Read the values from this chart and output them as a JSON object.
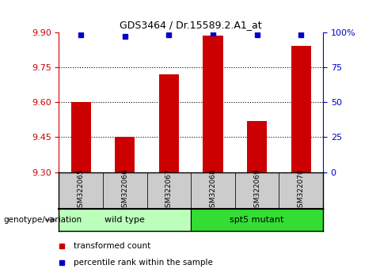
{
  "title": "GDS3464 / Dr.15589.2.A1_at",
  "categories": [
    "GSM322065",
    "GSM322066",
    "GSM322067",
    "GSM322068",
    "GSM322069",
    "GSM322070"
  ],
  "bar_values": [
    9.6,
    9.45,
    9.72,
    9.885,
    9.52,
    9.84
  ],
  "bar_bottom": 9.3,
  "bar_color": "#cc0000",
  "percentile_values": [
    98,
    97,
    98,
    99,
    98,
    98
  ],
  "percentile_color": "#0000cc",
  "ylim_left": [
    9.3,
    9.9
  ],
  "ylim_right": [
    0,
    100
  ],
  "yticks_left": [
    9.3,
    9.45,
    9.6,
    9.75,
    9.9
  ],
  "yticks_right": [
    0,
    25,
    50,
    75,
    100
  ],
  "ytick_labels_right": [
    "0",
    "25",
    "50",
    "75",
    "100%"
  ],
  "grid_values": [
    9.45,
    9.6,
    9.75
  ],
  "groups": [
    {
      "label": "wild type",
      "start": 0,
      "end": 3,
      "color": "#bbffbb"
    },
    {
      "label": "spt5 mutant",
      "start": 3,
      "end": 6,
      "color": "#33dd33"
    }
  ],
  "group_label": "genotype/variation",
  "legend_items": [
    {
      "color": "#cc0000",
      "label": "transformed count"
    },
    {
      "color": "#0000cc",
      "label": "percentile rank within the sample"
    }
  ],
  "left_axis_color": "#cc0000",
  "right_axis_color": "#0000cc",
  "xlim": [
    -0.5,
    5.5
  ],
  "bar_width": 0.45
}
